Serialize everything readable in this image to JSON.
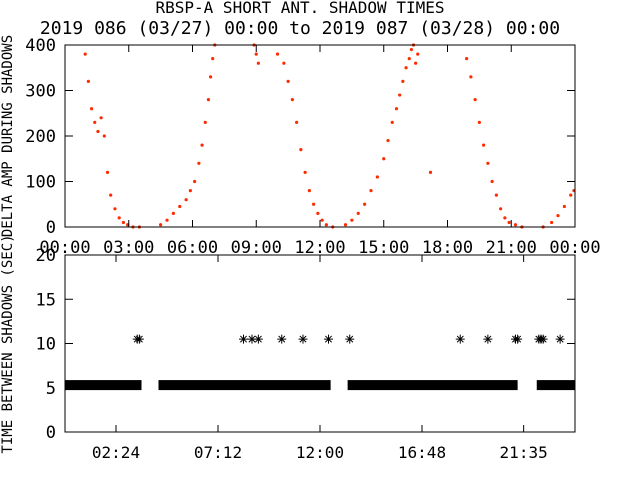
{
  "title": "RBSP-A SHORT ANT. SHADOW TIMES",
  "subtitle": "2019 086 (03/27) 00:00 to 2019 087 (03/28) 00:00",
  "colors": {
    "top_points": "#ff2a00",
    "bottom_points": "#000000",
    "axes": "#000000",
    "background": "#ffffff"
  },
  "chart_data": [
    {
      "type": "scatter",
      "title": "",
      "ylabel": "DELTA AMP DURING SHADOWS",
      "xlabel": "",
      "xlim": [
        0,
        24
      ],
      "ylim": [
        0,
        400
      ],
      "xtick_values": [
        0,
        3,
        6,
        9,
        12,
        15,
        18,
        21,
        24
      ],
      "xtick_labels": [
        "00:00",
        "03:00",
        "06:00",
        "09:00",
        "12:00",
        "15:00",
        "18:00",
        "21:00",
        "00:00"
      ],
      "ytick_values": [
        0,
        100,
        200,
        300,
        400
      ],
      "ytick_labels": [
        "0",
        "100",
        "200",
        "300",
        "400"
      ],
      "grid": false,
      "series": [
        {
          "marker": "dot",
          "x": [
            0.95,
            1.1,
            1.25,
            1.4,
            1.55,
            1.7,
            1.85,
            2.0,
            2.15,
            2.35,
            2.55,
            2.75,
            2.95,
            3.2,
            3.5,
            4.5,
            4.8,
            5.1,
            5.4,
            5.7,
            5.9,
            6.1,
            6.3,
            6.45,
            6.6,
            6.75,
            6.85,
            6.95,
            7.05,
            8.9,
            9.0,
            9.1,
            10.0,
            10.3,
            10.5,
            10.7,
            10.9,
            11.1,
            11.3,
            11.5,
            11.7,
            11.9,
            12.1,
            12.3,
            12.6,
            13.2,
            13.5,
            13.8,
            14.1,
            14.4,
            14.7,
            15.0,
            15.2,
            15.4,
            15.6,
            15.75,
            15.9,
            16.05,
            16.2,
            16.3,
            16.4,
            16.5,
            16.6,
            17.2,
            18.9,
            19.1,
            19.3,
            19.5,
            19.7,
            19.9,
            20.1,
            20.3,
            20.5,
            20.7,
            20.9,
            21.2,
            21.5,
            22.5,
            22.9,
            23.2,
            23.5,
            23.8,
            23.95
          ],
          "y": [
            380,
            320,
            260,
            230,
            210,
            240,
            200,
            120,
            70,
            40,
            20,
            10,
            5,
            0,
            0,
            5,
            15,
            30,
            45,
            60,
            80,
            100,
            140,
            180,
            230,
            280,
            330,
            370,
            400,
            400,
            380,
            360,
            380,
            360,
            320,
            280,
            230,
            170,
            120,
            80,
            50,
            30,
            15,
            5,
            0,
            5,
            15,
            30,
            50,
            80,
            110,
            150,
            190,
            230,
            260,
            290,
            320,
            350,
            370,
            390,
            400,
            360,
            380,
            120,
            370,
            330,
            280,
            230,
            180,
            140,
            100,
            70,
            40,
            20,
            10,
            5,
            0,
            0,
            10,
            25,
            45,
            70,
            80
          ]
        }
      ]
    },
    {
      "type": "scatter",
      "title": "",
      "ylabel": "TIME BETWEEN SHADOWS (SEC)",
      "xlabel": "",
      "xlim": [
        0,
        24
      ],
      "ylim": [
        0,
        20
      ],
      "xtick_values": [
        2.4,
        7.2,
        12.0,
        16.8,
        21.5833
      ],
      "xtick_labels": [
        "02:24",
        "07:12",
        "12:00",
        "16:48",
        "21:35"
      ],
      "ytick_values": [
        0,
        5,
        10,
        15,
        20
      ],
      "ytick_labels": [
        "0",
        "5",
        "10",
        "15",
        "20"
      ],
      "grid": false,
      "series": [
        {
          "marker": "star",
          "x": [
            3.4,
            3.5,
            8.4,
            8.8,
            9.1,
            10.2,
            11.2,
            12.4,
            13.4,
            18.6,
            19.9,
            21.2,
            21.3,
            22.3,
            22.4,
            22.5,
            23.3
          ],
          "y": [
            10.5,
            10.5,
            10.5,
            10.5,
            10.5,
            10.5,
            10.5,
            10.5,
            10.5,
            10.5,
            10.5,
            10.5,
            10.5,
            10.5,
            10.5,
            10.5,
            10.5
          ]
        },
        {
          "marker": "star-band",
          "segments": [
            [
              0,
              3.6,
              5.3
            ],
            [
              4.4,
              12.5,
              5.3
            ],
            [
              13.3,
              21.3,
              5.3
            ],
            [
              22.2,
              24,
              5.3
            ]
          ]
        }
      ]
    }
  ]
}
